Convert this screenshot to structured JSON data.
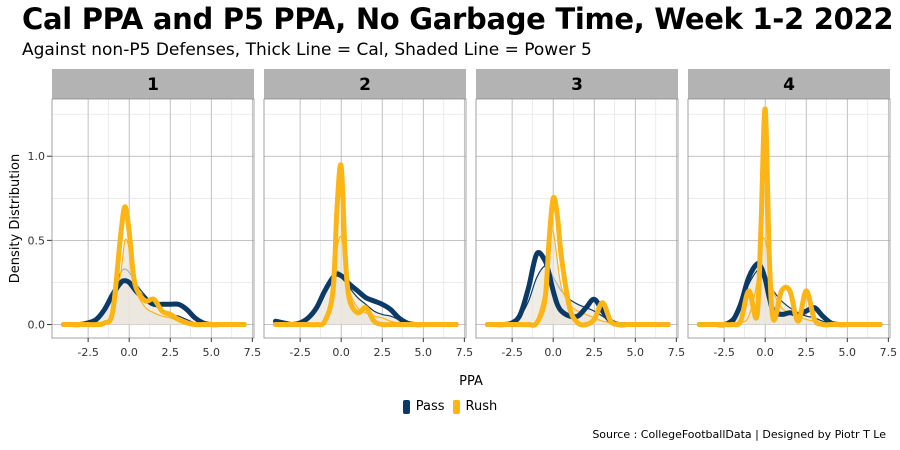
{
  "title": "Cal PPA and P5 PPA, No Garbage Time, Week 1-2 2022",
  "subtitle": "Against non-P5 Defenses, Thick Line = Cal, Shaded Line = Power 5",
  "caption": "Source : CollegeFootballData | Designed by Piotr T Le",
  "colors": {
    "pass": "#0b3a66",
    "rush": "#fdb515",
    "shade": "#e9e5dc",
    "strip": "#b3b3b3",
    "grid": "#b0b0b0"
  },
  "chart_data": {
    "type": "line",
    "xlabel": "PPA",
    "ylabel": "Density Distribution",
    "xlim": [
      -4.7,
      7.6
    ],
    "ylim": [
      -0.08,
      1.34
    ],
    "xticks": [
      "-2.5",
      "0.0",
      "2.5",
      "5.0",
      "7.5"
    ],
    "xtick_values": [
      -2.5,
      0,
      2.5,
      5,
      7.5
    ],
    "yticks": [
      "0.0",
      "0.5",
      "1.0"
    ],
    "ytick_values": [
      0,
      0.5,
      1
    ],
    "legend": [
      {
        "name": "Pass",
        "color": "#0b3a66"
      },
      {
        "name": "Rush",
        "color": "#fdb515"
      }
    ],
    "x": [
      -4,
      -3.5,
      -3,
      -2.5,
      -2,
      -1.5,
      -1,
      -0.5,
      -0.25,
      0,
      0.25,
      0.5,
      1,
      1.5,
      2,
      2.5,
      3,
      3.5,
      4,
      4.5,
      5,
      5.5,
      6,
      6.5,
      7
    ],
    "panels": [
      {
        "label": "1",
        "series": [
          {
            "name": "Cal Pass",
            "values": [
              0,
              0,
              0,
              0.01,
              0.03,
              0.09,
              0.18,
              0.25,
              0.26,
              0.25,
              0.22,
              0.19,
              0.15,
              0.12,
              0.12,
              0.12,
              0.12,
              0.09,
              0.04,
              0.01,
              0,
              0,
              0,
              0,
              0
            ]
          },
          {
            "name": "Cal Rush",
            "values": [
              0,
              0,
              0,
              0,
              0,
              0.01,
              0.08,
              0.55,
              0.7,
              0.55,
              0.3,
              0.2,
              0.14,
              0.15,
              0.08,
              0.06,
              0.03,
              0.01,
              0,
              0,
              0,
              0,
              0,
              0,
              0
            ]
          },
          {
            "name": "P5 Pass",
            "values": [
              0,
              0,
              0,
              0.01,
              0.04,
              0.1,
              0.2,
              0.31,
              0.33,
              0.31,
              0.27,
              0.23,
              0.17,
              0.12,
              0.08,
              0.06,
              0.05,
              0.03,
              0.01,
              0,
              0,
              0,
              0,
              0,
              0
            ]
          },
          {
            "name": "P5 Rush",
            "values": [
              0,
              0,
              0,
              0,
              0,
              0.01,
              0.06,
              0.32,
              0.5,
              0.45,
              0.28,
              0.18,
              0.1,
              0.07,
              0.05,
              0.04,
              0.02,
              0.01,
              0,
              0,
              0,
              0,
              0,
              0,
              0
            ]
          }
        ]
      },
      {
        "label": "2",
        "series": [
          {
            "name": "Cal Pass",
            "values": [
              0.02,
              0.01,
              0,
              0.01,
              0.04,
              0.1,
              0.2,
              0.28,
              0.3,
              0.29,
              0.27,
              0.24,
              0.2,
              0.16,
              0.14,
              0.12,
              0.09,
              0.04,
              0.01,
              0,
              0,
              0,
              0,
              0,
              0
            ]
          },
          {
            "name": "Cal Rush",
            "values": [
              0,
              0,
              0,
              0,
              0,
              0,
              0.02,
              0.2,
              0.7,
              0.94,
              0.4,
              0.15,
              0.07,
              0.1,
              0.02,
              0,
              0,
              0,
              0,
              0,
              0,
              0,
              0,
              0,
              0
            ]
          },
          {
            "name": "P5 Pass",
            "values": [
              0,
              0,
              0,
              0.01,
              0.04,
              0.1,
              0.2,
              0.3,
              0.32,
              0.3,
              0.26,
              0.22,
              0.16,
              0.12,
              0.08,
              0.06,
              0.05,
              0.03,
              0.01,
              0,
              0,
              0,
              0,
              0,
              0
            ]
          },
          {
            "name": "P5 Rush",
            "values": [
              0,
              0,
              0,
              0,
              0,
              0,
              0.03,
              0.2,
              0.45,
              0.52,
              0.36,
              0.2,
              0.1,
              0.07,
              0.05,
              0.04,
              0.02,
              0.01,
              0,
              0,
              0,
              0,
              0,
              0,
              0
            ]
          }
        ]
      },
      {
        "label": "3",
        "series": [
          {
            "name": "Cal Pass",
            "values": [
              0,
              0,
              0,
              0.01,
              0.06,
              0.22,
              0.42,
              0.38,
              0.3,
              0.2,
              0.12,
              0.08,
              0.05,
              0.05,
              0.1,
              0.15,
              0.08,
              0.02,
              0,
              0,
              0,
              0,
              0,
              0,
              0
            ]
          },
          {
            "name": "Cal Rush",
            "values": [
              0,
              0,
              0,
              0,
              0,
              0,
              0.01,
              0.15,
              0.5,
              0.75,
              0.65,
              0.4,
              0.1,
              0.01,
              0,
              0.03,
              0.13,
              0.02,
              0,
              0,
              0,
              0,
              0,
              0,
              0
            ]
          },
          {
            "name": "P5 Pass",
            "values": [
              0,
              0,
              0,
              0.01,
              0.05,
              0.14,
              0.28,
              0.35,
              0.33,
              0.28,
              0.24,
              0.2,
              0.15,
              0.12,
              0.1,
              0.08,
              0.05,
              0.02,
              0.01,
              0,
              0,
              0,
              0,
              0,
              0
            ]
          },
          {
            "name": "P5 Rush",
            "values": [
              0,
              0,
              0,
              0,
              0,
              0,
              0.03,
              0.22,
              0.5,
              0.55,
              0.38,
              0.22,
              0.12,
              0.08,
              0.06,
              0.04,
              0.02,
              0.01,
              0,
              0,
              0,
              0,
              0,
              0,
              0
            ]
          }
        ]
      },
      {
        "label": "4",
        "series": [
          {
            "name": "Cal Pass",
            "values": [
              0,
              0,
              0,
              0,
              0.02,
              0.12,
              0.28,
              0.36,
              0.34,
              0.27,
              0.16,
              0.08,
              0.06,
              0.07,
              0.06,
              0.08,
              0.1,
              0.05,
              0.01,
              0,
              0,
              0,
              0,
              0,
              0
            ]
          },
          {
            "name": "Cal Rush",
            "values": [
              0,
              0,
              0,
              0,
              0,
              0.02,
              0.2,
              0.05,
              0.6,
              1.28,
              0.4,
              0.03,
              0.2,
              0.2,
              0.02,
              0.2,
              0.03,
              0,
              0,
              0,
              0,
              0,
              0,
              0,
              0
            ]
          },
          {
            "name": "P5 Pass",
            "values": [
              0,
              0,
              0,
              0.01,
              0.04,
              0.12,
              0.24,
              0.32,
              0.33,
              0.3,
              0.25,
              0.2,
              0.14,
              0.1,
              0.07,
              0.05,
              0.04,
              0.02,
              0.01,
              0,
              0,
              0,
              0,
              0,
              0
            ]
          },
          {
            "name": "P5 Rush",
            "values": [
              0,
              0,
              0,
              0,
              0,
              0.01,
              0.05,
              0.25,
              0.48,
              0.5,
              0.35,
              0.2,
              0.1,
              0.07,
              0.05,
              0.03,
              0.02,
              0.01,
              0,
              0,
              0,
              0,
              0,
              0,
              0
            ]
          }
        ]
      }
    ]
  }
}
